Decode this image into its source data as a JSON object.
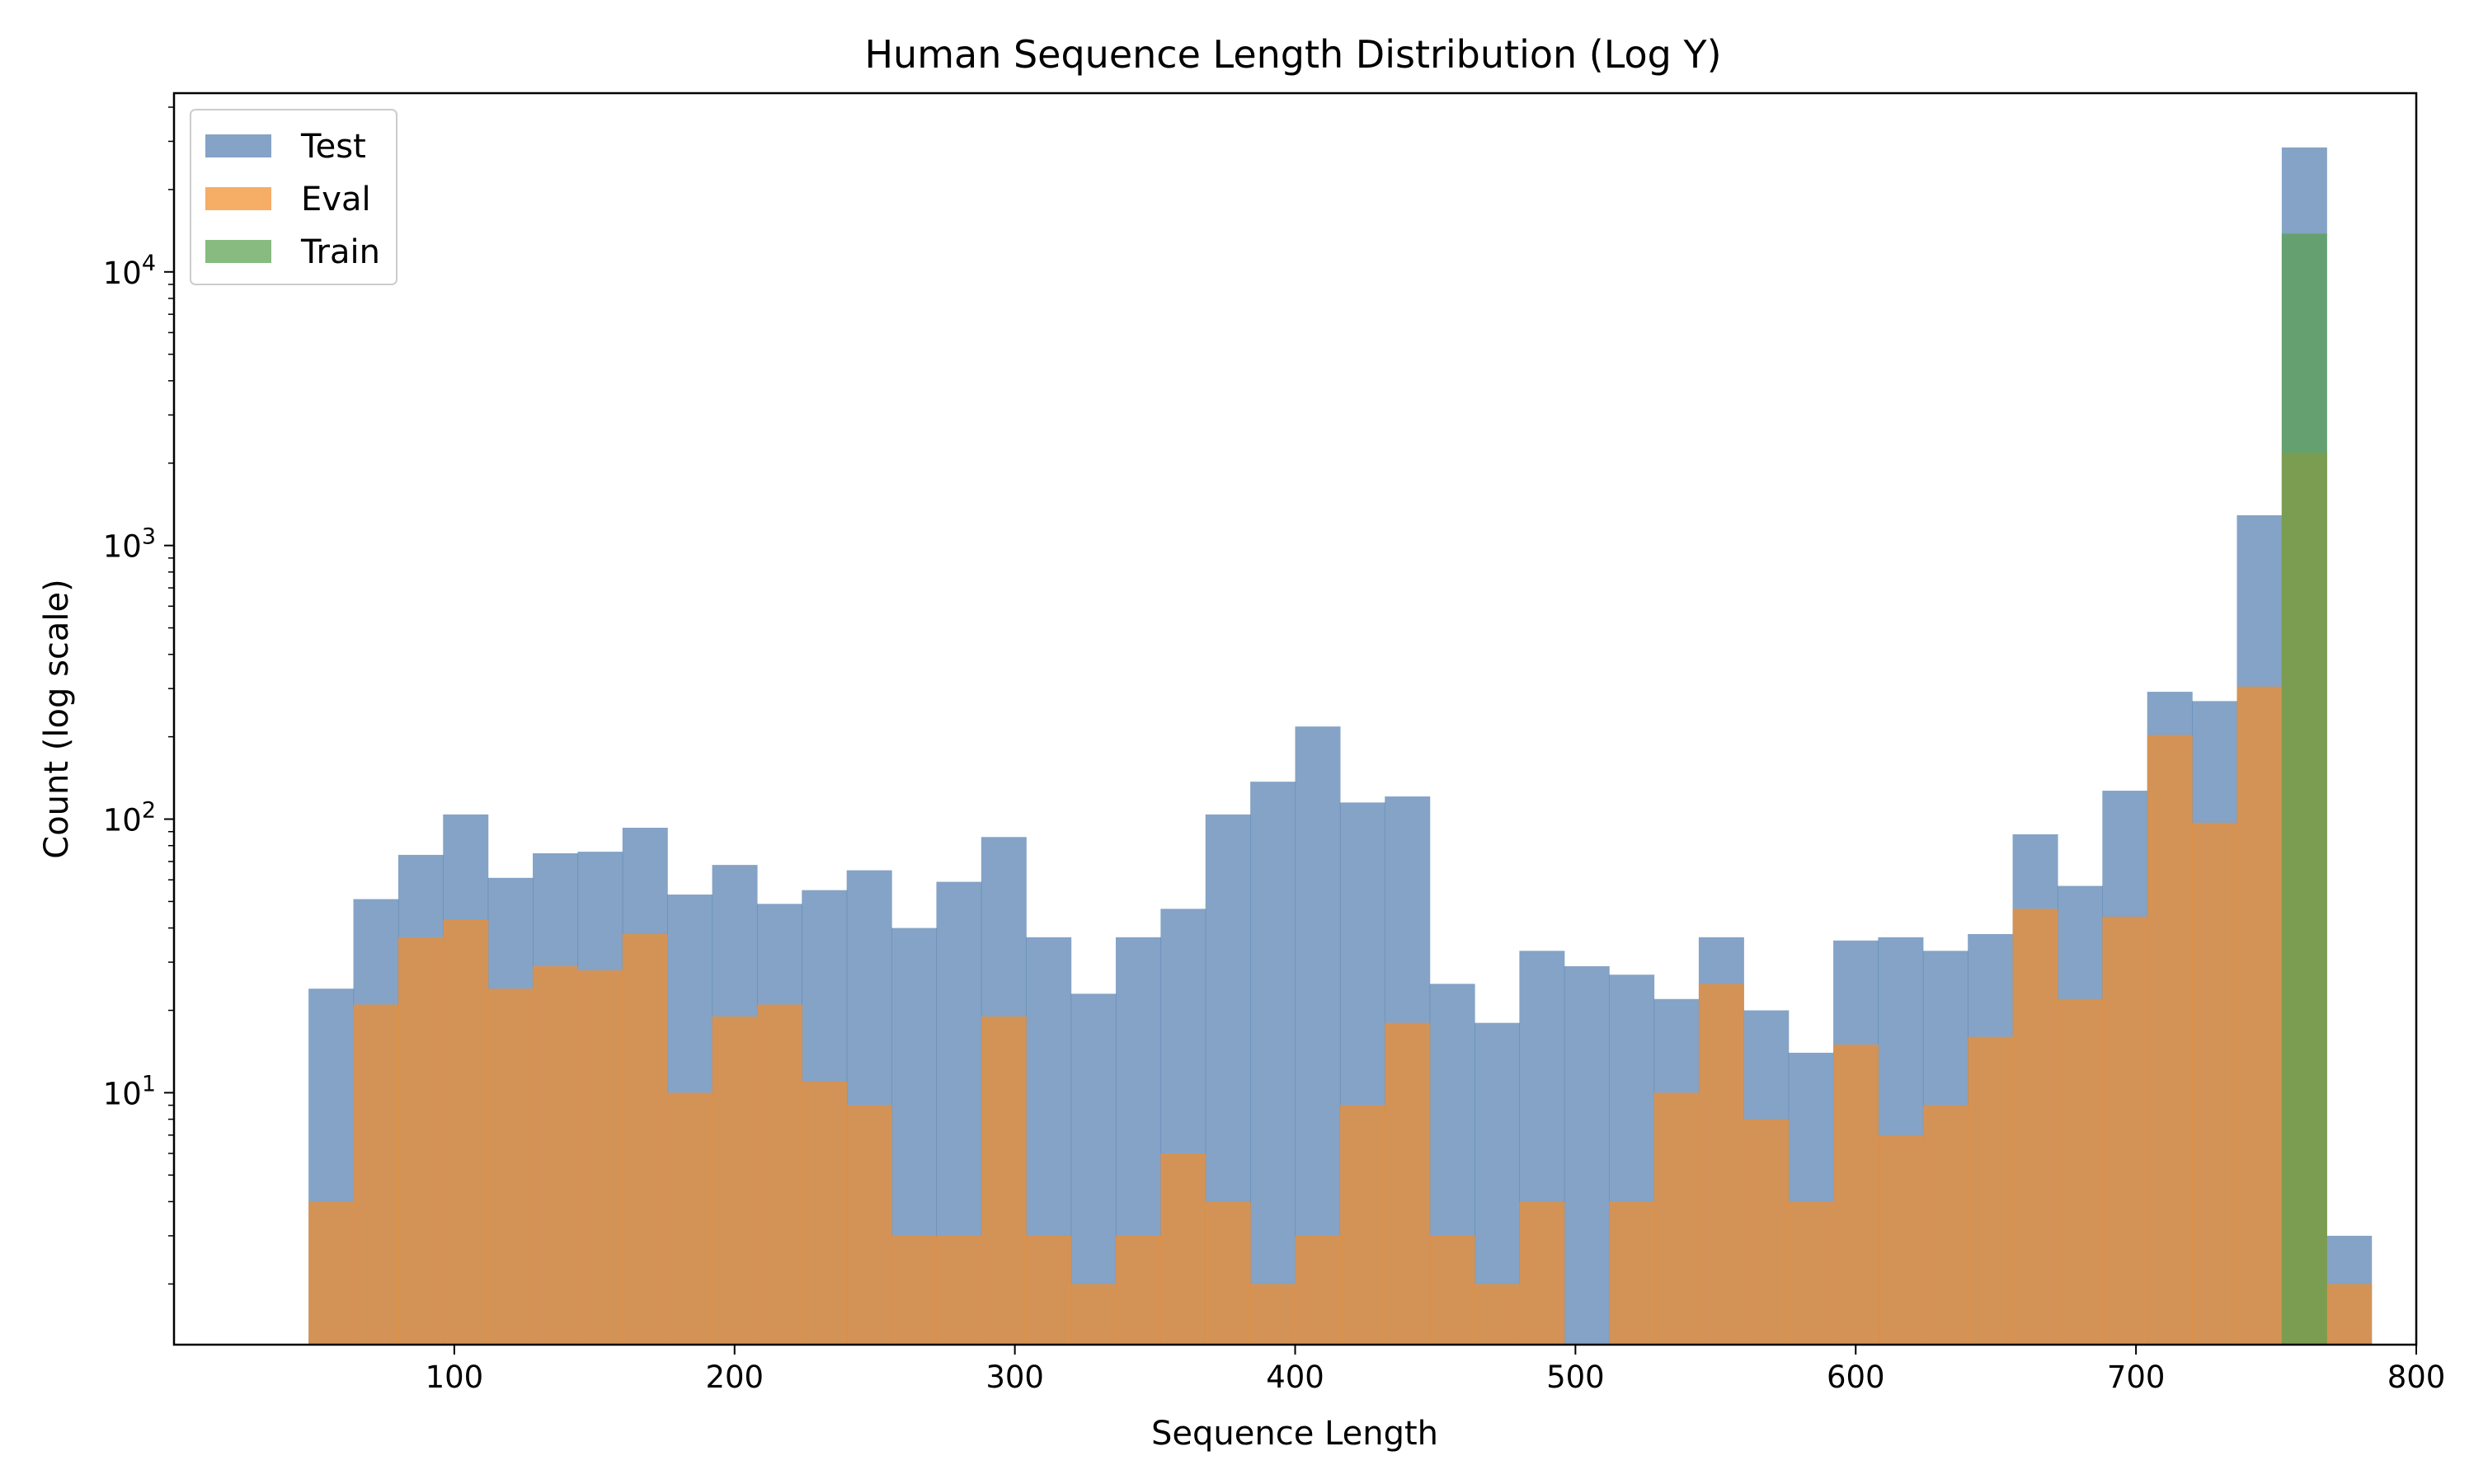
{
  "chart_data": {
    "type": "bar",
    "title": "Human Sequence Length Distribution (Log Y)",
    "xlabel": "Sequence Length",
    "ylabel": "Count (log scale)",
    "xlim": [
      0,
      800
    ],
    "ylim": [
      1.2,
      45000
    ],
    "yscale": "log",
    "xticks": [
      100,
      200,
      300,
      400,
      500,
      600,
      700,
      800
    ],
    "yticks": [
      10,
      100,
      1000,
      10000
    ],
    "ytick_labels": [
      {
        "base": "10",
        "exp": "1"
      },
      {
        "base": "10",
        "exp": "2"
      },
      {
        "base": "10",
        "exp": "3"
      },
      {
        "base": "10",
        "exp": "4"
      }
    ],
    "legend_position": "top-left",
    "bin_start": 48,
    "bin_width": 16,
    "series": [
      {
        "name": "Test",
        "color": "#5580b0",
        "values": [
          24,
          51,
          74,
          104,
          61,
          75,
          76,
          93,
          53,
          68,
          49,
          55,
          65,
          40,
          59,
          86,
          37,
          23,
          37,
          47,
          104,
          137,
          218,
          115,
          121,
          25,
          18,
          33,
          29,
          27,
          22,
          37,
          20,
          14,
          36,
          37,
          33,
          38,
          88,
          57,
          127,
          292,
          270,
          1290,
          28500,
          3
        ]
      },
      {
        "name": "Eval",
        "color": "#f28e2b",
        "values": [
          4,
          21,
          37,
          43,
          24,
          29,
          28,
          38,
          10,
          19,
          21,
          11,
          9,
          3,
          3,
          19,
          3,
          2,
          3,
          6,
          4,
          2,
          3,
          9,
          18,
          3,
          2,
          4,
          0,
          4,
          10,
          25,
          8,
          4,
          15,
          7,
          9,
          16,
          47,
          22,
          44,
          203,
          97,
          305,
          2180,
          2
        ]
      },
      {
        "name": "Train",
        "color": "#59a14f",
        "values": [
          0,
          0,
          0,
          0,
          0,
          0,
          0,
          0,
          0,
          0,
          0,
          0,
          0,
          0,
          0,
          0,
          0,
          0,
          0,
          0,
          0,
          0,
          0,
          0,
          0,
          0,
          0,
          0,
          0,
          0,
          0,
          0,
          0,
          0,
          0,
          0,
          0,
          0,
          0,
          0,
          0,
          0,
          0,
          0,
          13800,
          0
        ]
      }
    ]
  }
}
